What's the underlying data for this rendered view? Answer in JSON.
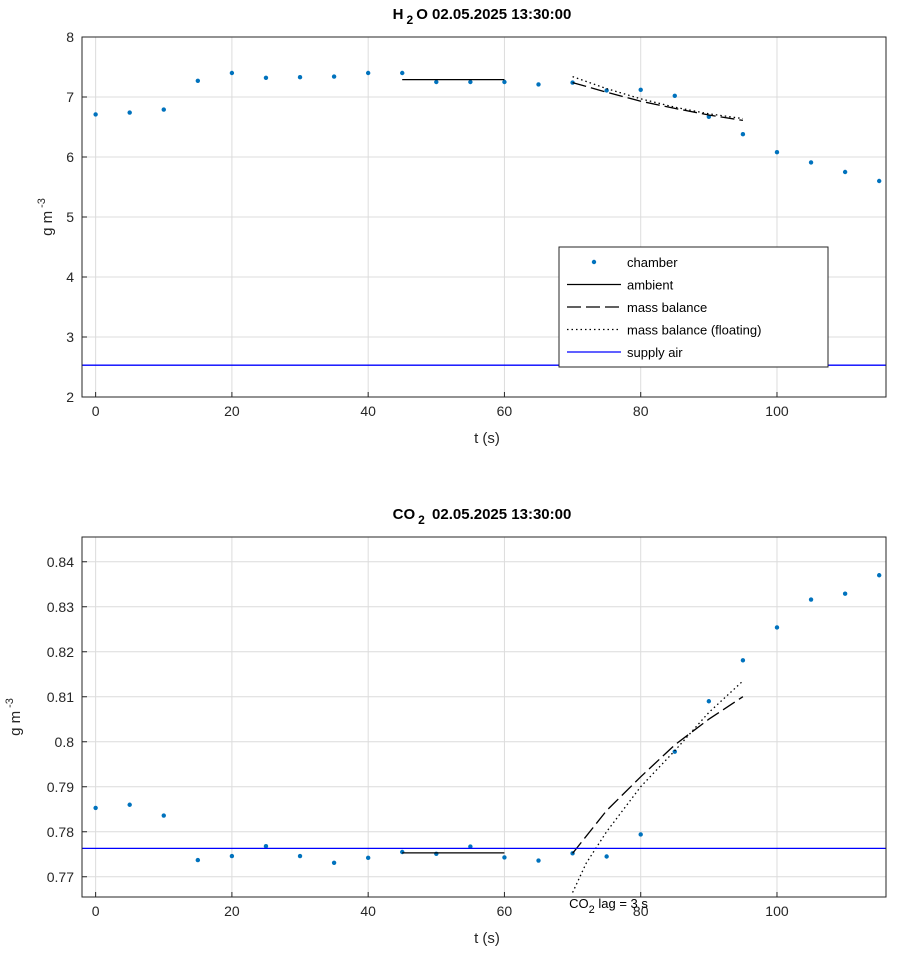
{
  "colors": {
    "chamber": "#0072bd",
    "supply": "#0000ff",
    "fit": "#000000"
  },
  "chart_data": [
    {
      "type": "line",
      "title": "H 2 O  02.05.2025 13:30:00",
      "title_main": "H",
      "title_sub": "2",
      "title_rest": "O  02.05.2025 13:30:00",
      "xlabel": "t (s)",
      "ylabel_main": "g m",
      "ylabel_sup": "-3",
      "xlim": [
        -2,
        116
      ],
      "ylim": [
        2,
        8
      ],
      "xticks": [
        0,
        20,
        40,
        60,
        80,
        100
      ],
      "yticks": [
        2,
        3,
        4,
        5,
        6,
        7,
        8
      ],
      "ytick_labels": [
        "2",
        "3",
        "4",
        "5",
        "6",
        "7",
        "8"
      ],
      "grid": true,
      "legend_position": "lower-right",
      "legend": [
        "chamber",
        "ambient",
        "mass balance",
        "mass balance (floating)",
        "supply air"
      ],
      "series": [
        {
          "name": "chamber",
          "style": "dots",
          "x": [
            0,
            5,
            10,
            15,
            20,
            25,
            30,
            35,
            40,
            45,
            50,
            55,
            60,
            65,
            70,
            75,
            80,
            85,
            90,
            95,
            100,
            105,
            110,
            115
          ],
          "y": [
            6.71,
            6.74,
            6.79,
            7.27,
            7.4,
            7.32,
            7.33,
            7.34,
            7.4,
            7.4,
            7.25,
            7.25,
            7.25,
            7.21,
            7.24,
            7.11,
            7.12,
            7.02,
            6.67,
            6.38,
            6.08,
            5.91,
            5.75,
            5.6
          ]
        },
        {
          "name": "ambient",
          "style": "solid",
          "x": [
            45,
            60
          ],
          "y": [
            7.29,
            7.29
          ]
        },
        {
          "name": "mass balance",
          "style": "dashed",
          "x": [
            70,
            75,
            80,
            85,
            90,
            95
          ],
          "y": [
            7.24,
            7.08,
            6.93,
            6.81,
            6.7,
            6.61
          ]
        },
        {
          "name": "mass balance (floating)",
          "style": "dotted",
          "x": [
            70,
            75,
            80,
            85,
            90,
            95
          ],
          "y": [
            7.34,
            7.14,
            6.97,
            6.83,
            6.72,
            6.64
          ]
        },
        {
          "name": "supply air",
          "style": "supply",
          "x": [
            -2,
            116
          ],
          "y": [
            2.53,
            2.53
          ]
        }
      ]
    },
    {
      "type": "line",
      "title": "CO 2  02.05.2025 13:30:00",
      "title_main": "CO",
      "title_sub": "2",
      "title_rest": " 02.05.2025 13:30:00",
      "xlabel": "t (s)",
      "ylabel_main": "g m",
      "ylabel_sup": "-3",
      "xlim": [
        -2,
        116
      ],
      "ylim": [
        0.7655,
        0.8455
      ],
      "xticks": [
        0,
        20,
        40,
        60,
        80,
        100
      ],
      "yticks": [
        0.77,
        0.78,
        0.79,
        0.8,
        0.81,
        0.82,
        0.83,
        0.84
      ],
      "ytick_labels": [
        "0.77",
        "0.78",
        "0.79",
        "0.8",
        "0.81",
        "0.82",
        "0.83",
        "0.84"
      ],
      "grid": true,
      "annotation": {
        "main": "CO",
        "sub": "2",
        "rest": " lag = 3 s",
        "x": 69.5,
        "y": 0.7662
      },
      "series": [
        {
          "name": "chamber",
          "style": "dots",
          "x": [
            0,
            5,
            10,
            15,
            20,
            25,
            30,
            35,
            40,
            45,
            50,
            55,
            60,
            65,
            70,
            75,
            80,
            85,
            90,
            95,
            100,
            105,
            110,
            115
          ],
          "y": [
            0.7853,
            0.786,
            0.7836,
            0.7737,
            0.7746,
            0.7768,
            0.7746,
            0.7731,
            0.7742,
            0.7755,
            0.7751,
            0.7767,
            0.7743,
            0.7736,
            0.7752,
            0.7745,
            0.7794,
            0.7978,
            0.809,
            0.8181,
            0.8254,
            0.8316,
            0.8329,
            0.837
          ]
        },
        {
          "name": "ambient",
          "style": "solid",
          "x": [
            45,
            60
          ],
          "y": [
            0.7753,
            0.7753
          ]
        },
        {
          "name": "mass balance",
          "style": "dashed",
          "x": [
            70,
            75,
            80,
            85,
            90,
            95
          ],
          "y": [
            0.7752,
            0.7847,
            0.7922,
            0.7993,
            0.805,
            0.81
          ]
        },
        {
          "name": "mass balance (floating)",
          "style": "dotted",
          "x": [
            70,
            72,
            75,
            80,
            85,
            90,
            95
          ],
          "y": [
            0.7665,
            0.773,
            0.78,
            0.79,
            0.798,
            0.8065,
            0.8135
          ]
        },
        {
          "name": "supply air",
          "style": "supply",
          "x": [
            -2,
            116
          ],
          "y": [
            0.7763,
            0.7763
          ]
        }
      ]
    }
  ]
}
